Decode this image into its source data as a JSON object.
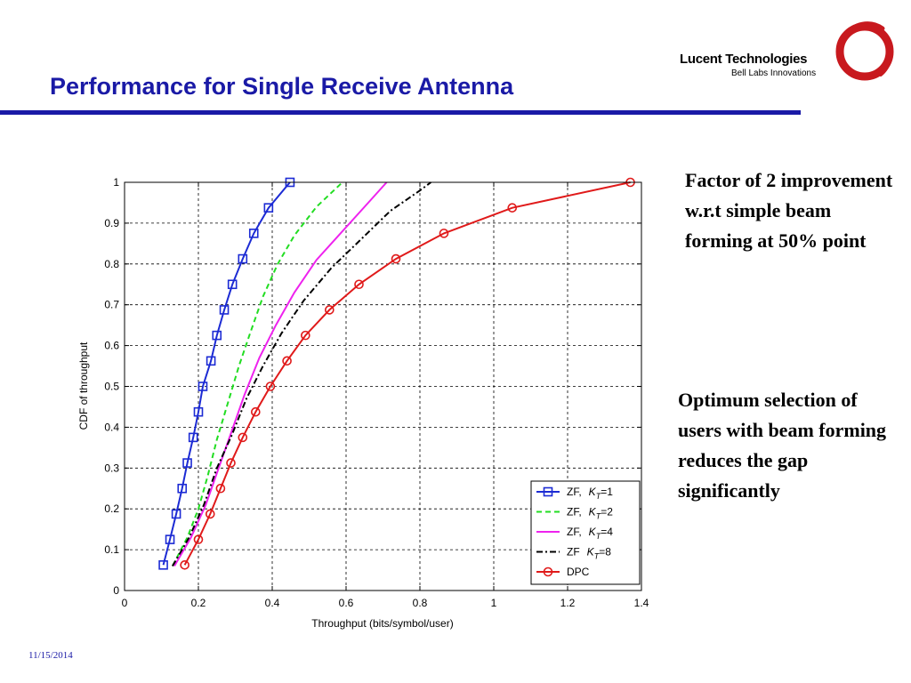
{
  "slide": {
    "title": "Performance for Single Receive Antenna",
    "logo_name": "Lucent Technologies",
    "logo_sub": "Bell Labs Innovations",
    "note1": "Factor of 2 improvement w.r.t simple beam forming at 50% point",
    "note2": "Optimum selection of users with beam forming reduces the gap significantly",
    "date": "11/15/2014",
    "title_color": "#1a1aa6",
    "logo_color": "#c8191e"
  },
  "chart_data": {
    "type": "line",
    "xlabel": "Throughput (bits/symbol/user)",
    "ylabel": "CDF of throughput",
    "xlim": [
      0,
      1.4
    ],
    "ylim": [
      0,
      1
    ],
    "xticks": [
      "0",
      "0.2",
      "0.4",
      "0.6",
      "0.8",
      "1",
      "1.2",
      "1.4"
    ],
    "yticks": [
      "0",
      "0.1",
      "0.2",
      "0.3",
      "0.4",
      "0.5",
      "0.6",
      "0.7",
      "0.8",
      "0.9",
      "1"
    ],
    "grid": true,
    "legend_position": "bottom-right",
    "series": [
      {
        "name_prefix": "ZF,",
        "k_value": "=1",
        "color": "#1c2bd4",
        "dash": "solid",
        "marker": "square",
        "x": [
          0.105,
          0.123,
          0.14,
          0.156,
          0.17,
          0.186,
          0.2,
          0.212,
          0.234,
          0.25,
          0.27,
          0.292,
          0.32,
          0.35,
          0.39,
          0.448
        ],
        "y": [
          0.0625,
          0.125,
          0.1875,
          0.25,
          0.3125,
          0.375,
          0.4375,
          0.5,
          0.5625,
          0.625,
          0.6875,
          0.75,
          0.8125,
          0.875,
          0.9375,
          1.0
        ]
      },
      {
        "name_prefix": "ZF,",
        "k_value": "=2",
        "color": "#22dd22",
        "dash": "dashed",
        "marker": "none",
        "x": [
          0.13,
          0.17,
          0.2,
          0.225,
          0.25,
          0.28,
          0.31,
          0.34,
          0.375,
          0.415,
          0.46,
          0.52,
          0.59
        ],
        "y": [
          0.06,
          0.13,
          0.2,
          0.28,
          0.37,
          0.46,
          0.55,
          0.63,
          0.72,
          0.8,
          0.87,
          0.94,
          1.0
        ]
      },
      {
        "name_prefix": "ZF,",
        "k_value": "=4",
        "color": "#ee22ee",
        "dash": "solid",
        "marker": "none",
        "x": [
          0.135,
          0.18,
          0.22,
          0.255,
          0.29,
          0.325,
          0.365,
          0.41,
          0.46,
          0.52,
          0.6,
          0.66,
          0.71
        ],
        "y": [
          0.06,
          0.13,
          0.21,
          0.3,
          0.39,
          0.48,
          0.57,
          0.65,
          0.73,
          0.81,
          0.89,
          0.95,
          1.0
        ]
      },
      {
        "name_prefix": "ZF",
        "k_value": "=8",
        "color": "#000000",
        "dash": "dashdot",
        "marker": "none",
        "x": [
          0.13,
          0.175,
          0.215,
          0.25,
          0.29,
          0.33,
          0.375,
          0.425,
          0.485,
          0.56,
          0.64,
          0.72,
          0.8,
          0.83
        ],
        "y": [
          0.06,
          0.13,
          0.21,
          0.3,
          0.38,
          0.47,
          0.55,
          0.63,
          0.71,
          0.79,
          0.86,
          0.93,
          0.98,
          1.0
        ]
      },
      {
        "name_prefix": "DPC",
        "k_value": "",
        "color": "#e01a1a",
        "dash": "solid",
        "marker": "circle",
        "x": [
          0.163,
          0.2,
          0.232,
          0.26,
          0.288,
          0.32,
          0.355,
          0.395,
          0.44,
          0.49,
          0.555,
          0.635,
          0.735,
          0.865,
          1.05,
          1.37
        ],
        "y": [
          0.0625,
          0.125,
          0.1875,
          0.25,
          0.3125,
          0.375,
          0.4375,
          0.5,
          0.5625,
          0.625,
          0.6875,
          0.75,
          0.8125,
          0.875,
          0.9375,
          1.0
        ]
      }
    ]
  }
}
